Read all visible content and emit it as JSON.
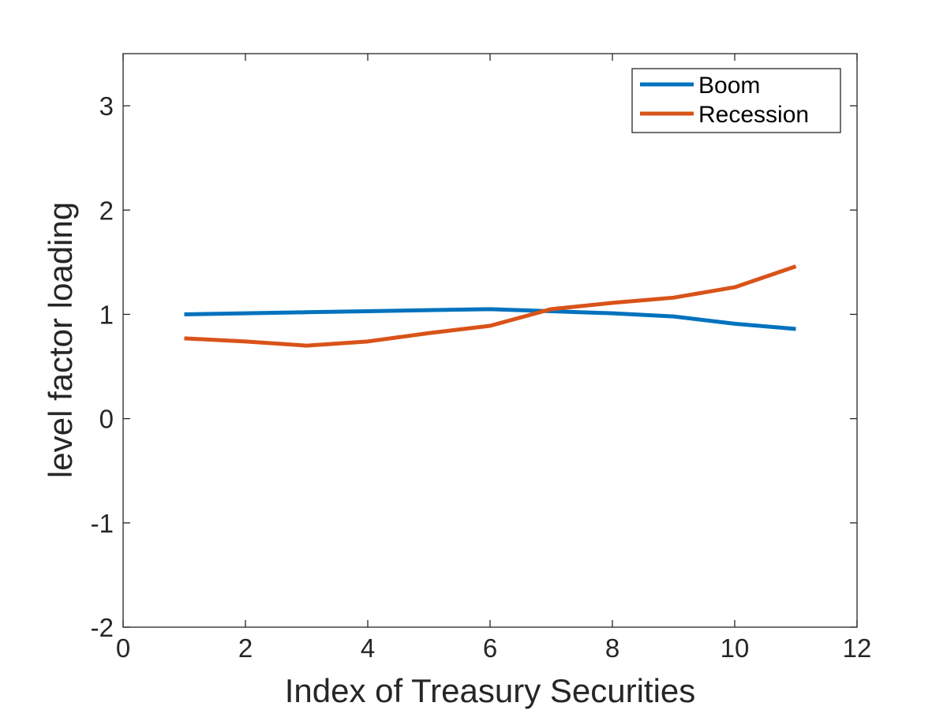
{
  "chart_data": {
    "type": "line",
    "title": "",
    "xlabel": "Index of Treasury Securities",
    "ylabel": "level factor loading",
    "xlim": [
      0,
      12
    ],
    "ylim": [
      -2,
      3.5
    ],
    "xticks": [
      0,
      2,
      4,
      6,
      8,
      10,
      12
    ],
    "yticks": [
      -2,
      -1,
      0,
      1,
      2,
      3
    ],
    "grid": false,
    "legend_position": "top-right",
    "x": [
      1,
      2,
      3,
      4,
      5,
      6,
      7,
      8,
      9,
      10,
      11
    ],
    "series": [
      {
        "name": "Boom",
        "color": "#0072bd",
        "values": [
          1.0,
          1.01,
          1.02,
          1.03,
          1.04,
          1.05,
          1.03,
          1.01,
          0.98,
          0.91,
          0.86
        ]
      },
      {
        "name": "Recession",
        "color": "#d95319",
        "values": [
          0.77,
          0.74,
          0.7,
          0.74,
          0.82,
          0.89,
          1.05,
          1.11,
          1.16,
          1.26,
          1.46
        ]
      }
    ]
  }
}
